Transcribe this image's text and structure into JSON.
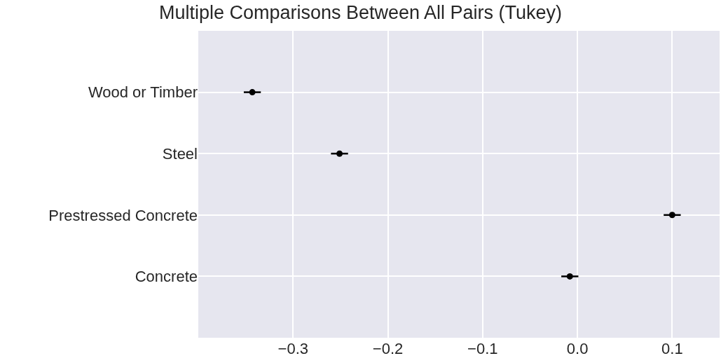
{
  "chart_data": {
    "type": "scatter",
    "title": "Multiple Comparisons Between All Pairs (Tukey)",
    "orientation": "horizontal",
    "categories": [
      "Wood or Timber",
      "Steel",
      "Prestressed Concrete",
      "Concrete"
    ],
    "series": [
      {
        "color": "#000000",
        "values": [
          -0.343,
          -0.251,
          0.1,
          -0.008
        ],
        "errors": [
          0.009,
          0.009,
          0.009,
          0.009
        ]
      }
    ],
    "xlim": [
      -0.4,
      0.15
    ],
    "xticks": [
      {
        "value": -0.3,
        "label": "−0.3"
      },
      {
        "value": -0.2,
        "label": "−0.2"
      },
      {
        "value": -0.1,
        "label": "−0.1"
      },
      {
        "value": 0.0,
        "label": "0.0"
      },
      {
        "value": 0.1,
        "label": "0.1"
      }
    ],
    "grid": true,
    "marker": "circle"
  }
}
